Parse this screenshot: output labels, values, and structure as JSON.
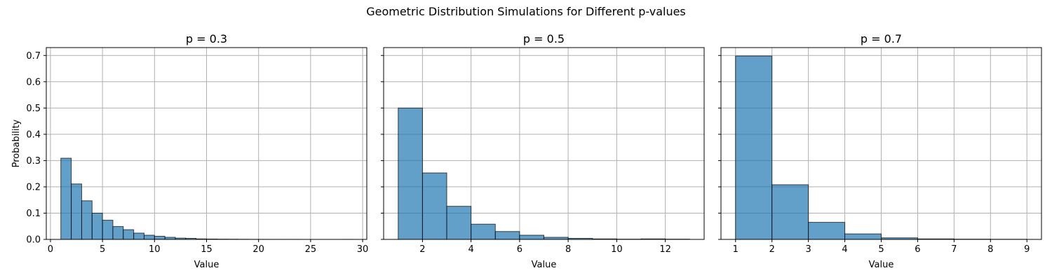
{
  "figure": {
    "title": "Geometric Distribution Simulations for Different p-values"
  },
  "chart_data": [
    {
      "type": "bar",
      "title": "p = 0.3",
      "xlabel": "Value",
      "ylabel": "Probability",
      "xlim": [
        -0.4,
        30.4
      ],
      "ylim": [
        0,
        0.73
      ],
      "xticks": [
        0,
        5,
        10,
        15,
        20,
        25,
        30
      ],
      "yticks": [
        0.0,
        0.1,
        0.2,
        0.3,
        0.4,
        0.5,
        0.6,
        0.7
      ],
      "grid": true,
      "bin_edges": [
        1,
        2,
        3,
        4,
        5,
        6,
        7,
        8,
        9,
        10,
        11,
        12,
        13,
        14,
        15,
        16,
        17,
        18,
        19,
        20,
        21,
        22,
        23,
        24,
        25,
        26,
        27,
        28,
        29
      ],
      "values": [
        0.309,
        0.211,
        0.147,
        0.1,
        0.073,
        0.049,
        0.037,
        0.024,
        0.016,
        0.012,
        0.008,
        0.005,
        0.004,
        0.002,
        0.0015,
        0.001,
        0.0008,
        0.0005,
        0.0003,
        0.0002,
        0.0001,
        0.0001,
        0.0001,
        0.0,
        0.0,
        0.0,
        0.0,
        0.0001
      ]
    },
    {
      "type": "bar",
      "title": "p = 0.5",
      "xlabel": "Value",
      "ylabel": "",
      "xlim": [
        0.4,
        13.6
      ],
      "ylim": [
        0,
        0.73
      ],
      "xticks": [
        2,
        4,
        6,
        8,
        10,
        12
      ],
      "yticks": [
        0.0,
        0.1,
        0.2,
        0.3,
        0.4,
        0.5,
        0.6,
        0.7
      ],
      "grid": true,
      "bin_edges": [
        1,
        2,
        3,
        4,
        5,
        6,
        7,
        8,
        9,
        10,
        11,
        12,
        13
      ],
      "values": [
        0.5,
        0.253,
        0.126,
        0.058,
        0.03,
        0.016,
        0.008,
        0.004,
        0.002,
        0.001,
        0.002,
        0.001
      ]
    },
    {
      "type": "bar",
      "title": "p = 0.7",
      "xlabel": "Value",
      "ylabel": "",
      "xlim": [
        0.6,
        9.4
      ],
      "ylim": [
        0,
        0.73
      ],
      "xticks": [
        1,
        2,
        3,
        4,
        5,
        6,
        7,
        8,
        9
      ],
      "yticks": [
        0.0,
        0.1,
        0.2,
        0.3,
        0.4,
        0.5,
        0.6,
        0.7
      ],
      "grid": true,
      "bin_edges": [
        1,
        2,
        3,
        4,
        5,
        6,
        7,
        8,
        9
      ],
      "values": [
        0.698,
        0.208,
        0.065,
        0.021,
        0.006,
        0.002,
        0.001,
        0.0005
      ]
    }
  ]
}
